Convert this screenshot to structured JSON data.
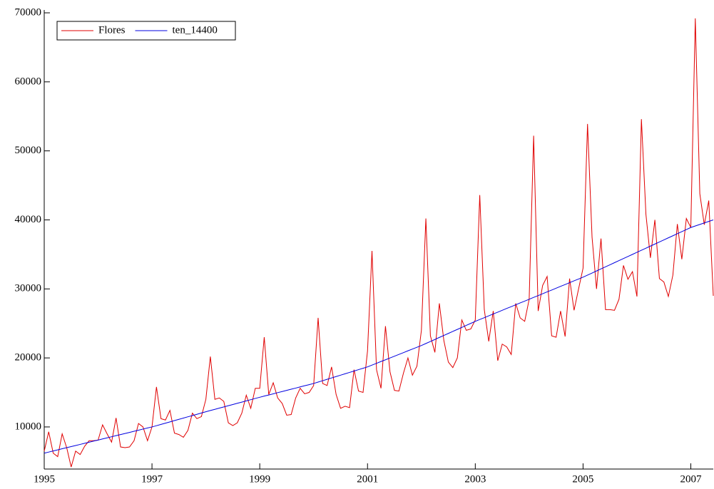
{
  "chart_data": {
    "type": "line",
    "x": [
      1995,
      1995.083,
      1995.167,
      1995.25,
      1995.333,
      1995.417,
      1995.5,
      1995.583,
      1995.667,
      1995.75,
      1995.833,
      1995.917,
      1996,
      1996.083,
      1996.167,
      1996.25,
      1996.333,
      1996.417,
      1996.5,
      1996.583,
      1996.667,
      1996.75,
      1996.833,
      1996.917,
      1997,
      1997.083,
      1997.167,
      1997.25,
      1997.333,
      1997.417,
      1997.5,
      1997.583,
      1997.667,
      1997.75,
      1997.833,
      1997.917,
      1998,
      1998.083,
      1998.167,
      1998.25,
      1998.333,
      1998.417,
      1998.5,
      1998.583,
      1998.667,
      1998.75,
      1998.833,
      1998.917,
      1999,
      1999.083,
      1999.167,
      1999.25,
      1999.333,
      1999.417,
      1999.5,
      1999.583,
      1999.667,
      1999.75,
      1999.833,
      1999.917,
      2000,
      2000.083,
      2000.167,
      2000.25,
      2000.333,
      2000.417,
      2000.5,
      2000.583,
      2000.667,
      2000.75,
      2000.833,
      2000.917,
      2001,
      2001.083,
      2001.167,
      2001.25,
      2001.333,
      2001.417,
      2001.5,
      2001.583,
      2001.667,
      2001.75,
      2001.833,
      2001.917,
      2002,
      2002.083,
      2002.167,
      2002.25,
      2002.333,
      2002.417,
      2002.5,
      2002.583,
      2002.667,
      2002.75,
      2002.833,
      2002.917,
      2003,
      2003.083,
      2003.167,
      2003.25,
      2003.333,
      2003.417,
      2003.5,
      2003.583,
      2003.667,
      2003.75,
      2003.833,
      2003.917,
      2004,
      2004.083,
      2004.167,
      2004.25,
      2004.333,
      2004.417,
      2004.5,
      2004.583,
      2004.667,
      2004.75,
      2004.833,
      2004.917,
      2005,
      2005.083,
      2005.167,
      2005.25,
      2005.333,
      2005.417,
      2005.5,
      2005.583,
      2005.667,
      2005.75,
      2005.833,
      2005.917,
      2006,
      2006.083,
      2006.167,
      2006.25,
      2006.333,
      2006.417,
      2006.5,
      2006.583,
      2006.667,
      2006.75,
      2006.833,
      2006.917,
      2007,
      2007.083,
      2007.167,
      2007.25,
      2007.333,
      2007.417
    ],
    "series": [
      {
        "name": "Flores",
        "color": "#e00000",
        "values": [
          6500,
          9300,
          6200,
          5700,
          9000,
          7000,
          4200,
          6500,
          6000,
          7200,
          8000,
          8000,
          8100,
          10300,
          9000,
          7800,
          11300,
          7100,
          7000,
          7100,
          8000,
          10500,
          10000,
          8000,
          10000,
          15800,
          11200,
          11000,
          12400,
          9100,
          8900,
          8500,
          9500,
          12000,
          11200,
          11500,
          14000,
          20200,
          14000,
          14200,
          13700,
          10600,
          10200,
          10600,
          12000,
          14600,
          12700,
          15600,
          15600,
          23000,
          14700,
          16400,
          14200,
          13400,
          11700,
          11800,
          14200,
          15600,
          14800,
          15000,
          16000,
          25800,
          16300,
          16000,
          18700,
          14700,
          12700,
          13000,
          12800,
          18300,
          15200,
          15000,
          21000,
          35500,
          18300,
          15600,
          24600,
          18000,
          15300,
          15200,
          17800,
          20000,
          17500,
          18800,
          24000,
          40200,
          23200,
          20800,
          27900,
          22500,
          19400,
          18600,
          20000,
          25500,
          24000,
          24200,
          25500,
          43600,
          27000,
          22400,
          26800,
          19600,
          22000,
          21600,
          20500,
          27900,
          25800,
          25300,
          28500,
          52200,
          26800,
          30500,
          31800,
          23200,
          23000,
          26800,
          23100,
          31500,
          26900,
          30000,
          33000,
          53900,
          37500,
          30000,
          37300,
          27000,
          27000,
          26900,
          28500,
          33400,
          31400,
          32500,
          28900,
          54600,
          40800,
          34500,
          40000,
          31500,
          31000,
          28900,
          32000,
          39400,
          34300,
          40200,
          38900,
          69200,
          43800,
          39300,
          42800,
          29000
        ]
      },
      {
        "name": "ten_14400",
        "color": "#0000e0",
        "values": [
          6200,
          6360,
          6520,
          6680,
          6840,
          7000,
          7150,
          7310,
          7470,
          7630,
          7790,
          7950,
          8100,
          8260,
          8420,
          8580,
          8740,
          8900,
          9050,
          9210,
          9370,
          9530,
          9690,
          9850,
          10000,
          10180,
          10370,
          10550,
          10730,
          10920,
          11100,
          11280,
          11470,
          11650,
          11830,
          12020,
          12200,
          12380,
          12550,
          12730,
          12900,
          13080,
          13250,
          13430,
          13600,
          13780,
          13950,
          14130,
          14300,
          14470,
          14630,
          14800,
          14970,
          15130,
          15300,
          15470,
          15630,
          15800,
          15970,
          16130,
          16300,
          16500,
          16700,
          16900,
          17100,
          17300,
          17500,
          17700,
          17900,
          18100,
          18300,
          18500,
          18700,
          18960,
          19220,
          19480,
          19730,
          19990,
          20250,
          20510,
          20770,
          21030,
          21280,
          21540,
          21800,
          22090,
          22380,
          22670,
          22970,
          23260,
          23550,
          23840,
          24130,
          24420,
          24720,
          25010,
          25300,
          25570,
          25830,
          26100,
          26370,
          26630,
          26900,
          27170,
          27430,
          27700,
          27970,
          28230,
          28500,
          28770,
          29030,
          29300,
          29570,
          29830,
          30100,
          30370,
          30630,
          30900,
          31170,
          31430,
          31700,
          32000,
          32300,
          32600,
          32900,
          33200,
          33500,
          33800,
          34100,
          34400,
          34700,
          35000,
          35300,
          35600,
          35900,
          36200,
          36500,
          36800,
          37100,
          37400,
          37700,
          38000,
          38300,
          38600,
          38900,
          39120,
          39340,
          39560,
          39780,
          40000
        ]
      }
    ],
    "xlim": [
      1995,
      2007.417
    ],
    "xticks": [
      1995,
      1997,
      1999,
      2001,
      2003,
      2005,
      2007
    ],
    "ylim": [
      3900,
      70000
    ],
    "yticks": [
      10000,
      20000,
      30000,
      40000,
      50000,
      60000,
      70000
    ],
    "legend": "top-left"
  }
}
